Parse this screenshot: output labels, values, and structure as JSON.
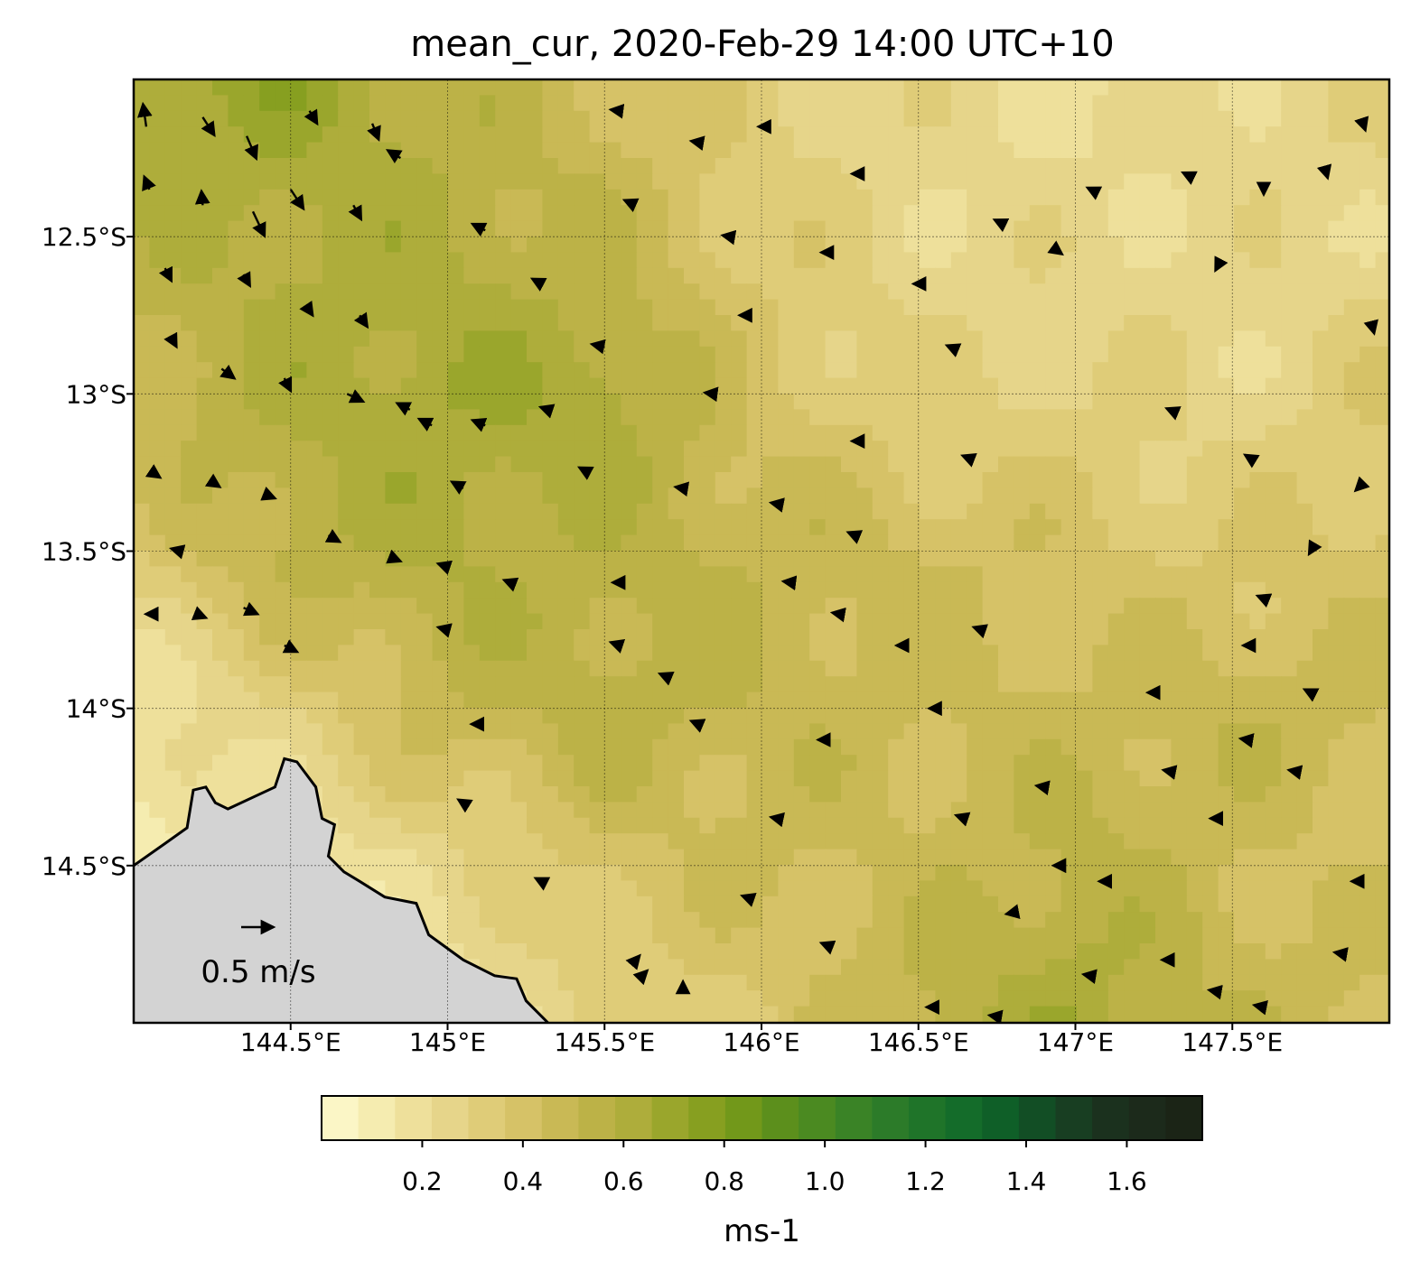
{
  "map": {
    "title": "mean_cur, 2020-Feb-29 14:00 UTC+10",
    "variable": "mean_cur",
    "lon_range": [
      144.0,
      148.0
    ],
    "lat_range": [
      -15.0,
      -12.0
    ],
    "lon_ticks": [
      {
        "value": 144.5,
        "label": "144.5°E"
      },
      {
        "value": 145.0,
        "label": "145°E"
      },
      {
        "value": 145.5,
        "label": "145.5°E"
      },
      {
        "value": 146.0,
        "label": "146°E"
      },
      {
        "value": 146.5,
        "label": "146.5°E"
      },
      {
        "value": 147.0,
        "label": "147°E"
      },
      {
        "value": 147.5,
        "label": "147.5°E"
      }
    ],
    "lat_ticks": [
      {
        "value": -12.5,
        "label": "12.5°S"
      },
      {
        "value": -13.0,
        "label": "13°S"
      },
      {
        "value": -13.5,
        "label": "13.5°S"
      },
      {
        "value": -14.0,
        "label": "14°S"
      },
      {
        "value": -14.5,
        "label": "14.5°S"
      }
    ],
    "gridlines": true,
    "land_color": "#d3d3d3",
    "coastline_color": "#000000",
    "vector_color": "#000000",
    "reference_vector": {
      "speed_m_s": 0.5,
      "label": "0.5 m/s"
    },
    "colorbar": {
      "label": "ms-1",
      "range": [
        0.0,
        1.75
      ],
      "ticks": [
        {
          "value": 0.2,
          "label": "0.2"
        },
        {
          "value": 0.4,
          "label": "0.4"
        },
        {
          "value": 0.6,
          "label": "0.6"
        },
        {
          "value": 0.8,
          "label": "0.8"
        },
        {
          "value": 1.0,
          "label": "1.0"
        },
        {
          "value": 1.2,
          "label": "1.2"
        },
        {
          "value": 1.4,
          "label": "1.4"
        },
        {
          "value": 1.6,
          "label": "1.6"
        }
      ],
      "colors": [
        "#fbf6c6",
        "#f5ecb0",
        "#eee09b",
        "#e6d58a",
        "#dfcc78",
        "#d6c267",
        "#c9b955",
        "#bcb247",
        "#aead3b",
        "#9aa62c",
        "#879f20",
        "#72981a",
        "#5c8f1c",
        "#4b8a21",
        "#3a8326",
        "#2c7b29",
        "#1f7429",
        "#146c2a",
        "#0f5f28",
        "#124e25",
        "#183e22",
        "#1b311e",
        "#1c2a1b",
        "#1b2416"
      ]
    },
    "speed_field": {
      "description_free": true,
      "grid_lon": [
        144.0,
        144.5,
        145.0,
        145.5,
        146.0,
        146.5,
        147.0,
        147.5,
        148.0
      ],
      "grid_lat": [
        -12.0,
        -12.5,
        -13.0,
        -13.5,
        -14.0,
        -14.5,
        -15.0
      ],
      "values": [
        [
          0.65,
          0.7,
          0.55,
          0.45,
          0.3,
          0.25,
          0.2,
          0.25,
          0.3
        ],
        [
          0.55,
          0.6,
          0.6,
          0.5,
          0.35,
          0.25,
          0.25,
          0.25,
          0.25
        ],
        [
          0.5,
          0.6,
          0.65,
          0.65,
          0.4,
          0.3,
          0.3,
          0.25,
          0.35
        ],
        [
          0.35,
          0.55,
          0.6,
          0.55,
          0.5,
          0.45,
          0.4,
          0.35,
          0.4
        ],
        [
          0.15,
          0.3,
          0.5,
          0.55,
          0.5,
          0.45,
          0.45,
          0.5,
          0.45
        ],
        [
          0.1,
          0.15,
          0.25,
          0.4,
          0.45,
          0.45,
          0.55,
          0.45,
          0.4
        ],
        [
          0.1,
          0.1,
          0.15,
          0.3,
          0.35,
          0.55,
          0.65,
          0.5,
          0.45
        ]
      ]
    },
    "coastline": [
      [
        144.0,
        -14.5
      ],
      [
        144.1,
        -14.43
      ],
      [
        144.17,
        -14.38
      ],
      [
        144.19,
        -14.26
      ],
      [
        144.23,
        -14.25
      ],
      [
        144.26,
        -14.3
      ],
      [
        144.3,
        -14.32
      ],
      [
        144.45,
        -14.25
      ],
      [
        144.48,
        -14.16
      ],
      [
        144.52,
        -14.17
      ],
      [
        144.58,
        -14.25
      ],
      [
        144.6,
        -14.35
      ],
      [
        144.64,
        -14.37
      ],
      [
        144.62,
        -14.47
      ],
      [
        144.67,
        -14.52
      ],
      [
        144.72,
        -14.55
      ],
      [
        144.8,
        -14.6
      ],
      [
        144.9,
        -14.62
      ],
      [
        144.94,
        -14.72
      ],
      [
        145.05,
        -14.8
      ],
      [
        145.15,
        -14.85
      ],
      [
        145.22,
        -14.86
      ],
      [
        145.25,
        -14.93
      ],
      [
        145.32,
        -15.0
      ]
    ],
    "vectors": [
      [
        144.04,
        -12.15,
        -0.05,
        0.35
      ],
      [
        144.22,
        -12.12,
        0.18,
        -0.28
      ],
      [
        144.36,
        -12.18,
        0.15,
        -0.35
      ],
      [
        144.56,
        -12.1,
        0.12,
        -0.2
      ],
      [
        144.76,
        -12.14,
        0.1,
        -0.25
      ],
      [
        144.05,
        -12.35,
        -0.08,
        0.2
      ],
      [
        144.22,
        -12.4,
        -0.02,
        0.22
      ],
      [
        144.38,
        -12.42,
        0.18,
        -0.38
      ],
      [
        144.5,
        -12.35,
        0.2,
        -0.3
      ],
      [
        144.7,
        -12.4,
        0.12,
        -0.22
      ],
      [
        144.1,
        -12.6,
        0.1,
        -0.2
      ],
      [
        144.35,
        -12.62,
        0.1,
        -0.18
      ],
      [
        144.55,
        -12.72,
        0.1,
        -0.15
      ],
      [
        144.72,
        -12.75,
        0.12,
        -0.18
      ],
      [
        144.85,
        -12.25,
        -0.2,
        0.12
      ],
      [
        144.12,
        -12.82,
        0.08,
        -0.15
      ],
      [
        144.28,
        -12.92,
        0.2,
        -0.15
      ],
      [
        144.48,
        -12.95,
        0.1,
        -0.2
      ],
      [
        144.68,
        -13.0,
        0.25,
        -0.12
      ],
      [
        144.88,
        -13.05,
        -0.2,
        0.1
      ],
      [
        144.06,
        -13.25,
        0.12,
        -0.08
      ],
      [
        144.25,
        -13.28,
        0.12,
        -0.08
      ],
      [
        144.42,
        -13.32,
        0.15,
        -0.06
      ],
      [
        144.62,
        -13.45,
        0.18,
        -0.1
      ],
      [
        144.82,
        -13.52,
        0.15,
        -0.06
      ],
      [
        144.15,
        -13.5,
        -0.15,
        0.04
      ],
      [
        144.35,
        -13.68,
        0.22,
        -0.1
      ],
      [
        144.48,
        -13.8,
        0.2,
        -0.1
      ],
      [
        144.05,
        -13.7,
        -0.06,
        0.0
      ],
      [
        144.2,
        -13.7,
        0.15,
        -0.06
      ],
      [
        144.95,
        -13.1,
        -0.2,
        0.1
      ],
      [
        145.05,
        -13.3,
        -0.18,
        0.1
      ],
      [
        145.0,
        -13.55,
        -0.15,
        0.05
      ],
      [
        145.12,
        -12.48,
        -0.2,
        0.1
      ],
      [
        145.3,
        -12.65,
        -0.15,
        0.08
      ],
      [
        145.12,
        -13.1,
        -0.2,
        0.08
      ],
      [
        145.32,
        -13.05,
        -0.12,
        0.04
      ],
      [
        145.45,
        -13.25,
        -0.15,
        0.08
      ],
      [
        145.5,
        -12.85,
        -0.2,
        0.04
      ],
      [
        145.6,
        -12.4,
        -0.18,
        0.08
      ],
      [
        145.55,
        -12.1,
        -0.15,
        0.02
      ],
      [
        145.8,
        -12.2,
        -0.12,
        0.02
      ],
      [
        145.9,
        -12.5,
        -0.12,
        0.02
      ],
      [
        145.95,
        -12.75,
        -0.1,
        0.0
      ],
      [
        145.85,
        -13.0,
        -0.15,
        0.02
      ],
      [
        145.2,
        -13.6,
        -0.1,
        0.04
      ],
      [
        145.0,
        -13.75,
        -0.15,
        0.04
      ],
      [
        145.1,
        -14.05,
        -0.12,
        0.0
      ],
      [
        145.05,
        -14.3,
        -0.08,
        0.05
      ],
      [
        145.3,
        -14.55,
        -0.1,
        0.05
      ],
      [
        145.55,
        -13.6,
        -0.12,
        0.0
      ],
      [
        145.55,
        -13.8,
        -0.15,
        0.05
      ],
      [
        145.7,
        -13.9,
        -0.12,
        0.05
      ],
      [
        145.8,
        -14.05,
        -0.12,
        0.05
      ],
      [
        145.75,
        -13.3,
        -0.12,
        0.02
      ],
      [
        146.05,
        -13.35,
        -0.1,
        0.02
      ],
      [
        146.1,
        -13.6,
        -0.15,
        0.02
      ],
      [
        146.25,
        -13.7,
        -0.12,
        0.02
      ],
      [
        146.2,
        -14.1,
        -0.1,
        0.0
      ],
      [
        146.05,
        -14.35,
        -0.1,
        0.02
      ],
      [
        146.3,
        -13.45,
        -0.12,
        0.05
      ],
      [
        146.45,
        -13.8,
        -0.1,
        0.0
      ],
      [
        146.55,
        -14.0,
        -0.08,
        0.0
      ],
      [
        146.7,
        -13.75,
        -0.12,
        0.04
      ],
      [
        146.65,
        -14.35,
        -0.15,
        0.05
      ],
      [
        146.9,
        -14.25,
        -0.12,
        0.02
      ],
      [
        146.95,
        -14.5,
        -0.1,
        0.0
      ],
      [
        147.1,
        -14.55,
        -0.12,
        0.0
      ],
      [
        147.05,
        -14.85,
        -0.12,
        0.02
      ],
      [
        146.8,
        -14.65,
        -0.1,
        -0.02
      ],
      [
        147.25,
        -13.95,
        -0.1,
        0.0
      ],
      [
        147.3,
        -14.2,
        -0.1,
        0.02
      ],
      [
        147.45,
        -14.35,
        -0.1,
        0.0
      ],
      [
        147.55,
        -14.1,
        -0.12,
        0.02
      ],
      [
        147.7,
        -14.2,
        -0.1,
        0.02
      ],
      [
        147.55,
        -13.8,
        -0.08,
        0.0
      ],
      [
        147.6,
        -13.65,
        -0.1,
        0.04
      ],
      [
        147.75,
        -13.95,
        -0.1,
        0.05
      ],
      [
        147.9,
        -14.55,
        -0.1,
        0.0
      ],
      [
        147.85,
        -14.78,
        -0.12,
        0.02
      ],
      [
        147.45,
        -14.9,
        -0.12,
        0.02
      ],
      [
        147.6,
        -14.95,
        -0.15,
        0.03
      ],
      [
        147.3,
        -14.8,
        -0.12,
        0.0
      ],
      [
        146.55,
        -14.95,
        -0.12,
        0.0
      ],
      [
        146.75,
        -14.98,
        -0.12,
        0.02
      ],
      [
        145.6,
        -14.8,
        0.06,
        0.07
      ],
      [
        145.62,
        -14.85,
        0.08,
        0.08
      ],
      [
        145.75,
        -14.88,
        0.0,
        0.06
      ],
      [
        145.95,
        -14.6,
        -0.06,
        0.02
      ],
      [
        146.2,
        -14.75,
        -0.05,
        0.02
      ],
      [
        146.5,
        -12.65,
        -0.08,
        0.0
      ],
      [
        146.6,
        -12.85,
        -0.05,
        0.02
      ],
      [
        146.75,
        -12.45,
        -0.04,
        0.02
      ],
      [
        146.95,
        -12.55,
        0.04,
        -0.03
      ],
      [
        147.05,
        -12.35,
        -0.06,
        0.03
      ],
      [
        147.35,
        -12.3,
        -0.04,
        0.02
      ],
      [
        147.45,
        -12.6,
        -0.02,
        -0.04
      ],
      [
        147.6,
        -12.35,
        0.0,
        -0.08
      ],
      [
        147.8,
        -12.3,
        0.02,
        -0.07
      ],
      [
        147.92,
        -12.15,
        0.02,
        -0.06
      ],
      [
        147.3,
        -13.05,
        -0.05,
        0.02
      ],
      [
        147.55,
        -13.2,
        -0.05,
        0.03
      ],
      [
        147.9,
        -13.3,
        -0.04,
        -0.04
      ],
      [
        147.75,
        -13.5,
        -0.03,
        -0.05
      ],
      [
        147.95,
        -12.8,
        0.01,
        -0.04
      ],
      [
        146.3,
        -12.3,
        -0.06,
        0.0
      ],
      [
        146.2,
        -12.55,
        -0.05,
        0.0
      ],
      [
        146.0,
        -12.15,
        -0.05,
        0.0
      ],
      [
        146.3,
        -13.15,
        -0.06,
        0.0
      ],
      [
        146.65,
        -13.2,
        -0.05,
        0.02
      ]
    ]
  }
}
